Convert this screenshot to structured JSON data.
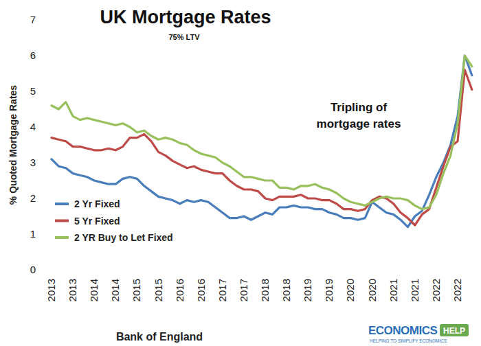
{
  "chart_data": {
    "type": "line",
    "title": "UK Mortgage Rates",
    "subtitle": "75% LTV",
    "x_label": "Bank of England",
    "y_label": "% Quoted Mortgage Rates",
    "annotations": [
      "Tripling of",
      "mortgage rates",
      "ECONOMICS",
      "HELP",
      "HELPING TO SIMPLIFY ECONOMICS"
    ],
    "categories": [
      "2013",
      null,
      null,
      "2013",
      null,
      null,
      "2014",
      null,
      null,
      "2014",
      null,
      null,
      "2015",
      null,
      null,
      "2015",
      null,
      null,
      "2016",
      null,
      null,
      "2016",
      null,
      null,
      "2017",
      null,
      null,
      "2017",
      null,
      null,
      "2018",
      null,
      null,
      "2018",
      null,
      null,
      "2019",
      null,
      null,
      "2019",
      null,
      null,
      "2020",
      null,
      null,
      "2020",
      null,
      null,
      "2021",
      null,
      null,
      "2021",
      null,
      null,
      "2022",
      null,
      null,
      "2022",
      null,
      null
    ],
    "series": [
      {
        "name": "2 Yr Fixed",
        "color": "#4a7ebb",
        "values": [
          3.1,
          2.9,
          2.85,
          2.7,
          2.65,
          2.6,
          2.5,
          2.45,
          2.4,
          2.4,
          2.55,
          2.6,
          2.55,
          2.35,
          2.2,
          2.05,
          2.0,
          1.95,
          1.85,
          1.95,
          1.9,
          1.95,
          1.9,
          1.75,
          1.6,
          1.45,
          1.45,
          1.5,
          1.4,
          1.5,
          1.6,
          1.55,
          1.75,
          1.75,
          1.8,
          1.75,
          1.75,
          1.7,
          1.7,
          1.6,
          1.55,
          1.45,
          1.45,
          1.4,
          1.45,
          1.9,
          1.75,
          1.6,
          1.55,
          1.4,
          1.2,
          1.5,
          1.65,
          2.1,
          2.6,
          3.0,
          3.5,
          4.3,
          6.0,
          5.45
        ]
      },
      {
        "name": "5 Yr Fixed",
        "color": "#be4b48",
        "values": [
          3.7,
          3.65,
          3.6,
          3.45,
          3.45,
          3.4,
          3.35,
          3.35,
          3.4,
          3.35,
          3.45,
          3.7,
          3.7,
          3.8,
          3.6,
          3.3,
          3.2,
          3.05,
          2.95,
          2.85,
          2.9,
          2.8,
          2.75,
          2.7,
          2.7,
          2.5,
          2.35,
          2.25,
          2.25,
          2.2,
          2.0,
          1.95,
          2.05,
          2.05,
          2.05,
          2.1,
          2.0,
          2.0,
          1.95,
          1.95,
          1.85,
          1.7,
          1.7,
          1.65,
          1.7,
          1.95,
          2.05,
          2.0,
          1.85,
          1.6,
          1.45,
          1.25,
          1.55,
          1.7,
          2.3,
          2.9,
          3.45,
          3.6,
          5.6,
          5.05
        ]
      },
      {
        "name": "2 YR Buy to Let Fixed",
        "color": "#98c05c",
        "values": [
          4.6,
          4.5,
          4.7,
          4.3,
          4.2,
          4.25,
          4.2,
          4.15,
          4.1,
          4.05,
          4.1,
          4.0,
          3.85,
          3.9,
          3.75,
          3.65,
          3.7,
          3.65,
          3.55,
          3.5,
          3.35,
          3.25,
          3.2,
          3.15,
          3.0,
          2.9,
          2.75,
          2.6,
          2.6,
          2.55,
          2.5,
          2.5,
          2.3,
          2.3,
          2.25,
          2.35,
          2.35,
          2.4,
          2.3,
          2.25,
          2.15,
          2.0,
          1.9,
          1.85,
          1.8,
          1.9,
          2.0,
          2.05,
          2.0,
          2.0,
          1.95,
          1.8,
          1.7,
          1.75,
          2.1,
          2.7,
          3.2,
          4.1,
          6.0,
          5.7
        ]
      }
    ],
    "ylim": [
      0,
      7
    ],
    "yticks": [
      0,
      1,
      2,
      3,
      4,
      5,
      6,
      7
    ],
    "grid": false,
    "legend": "lower left"
  }
}
